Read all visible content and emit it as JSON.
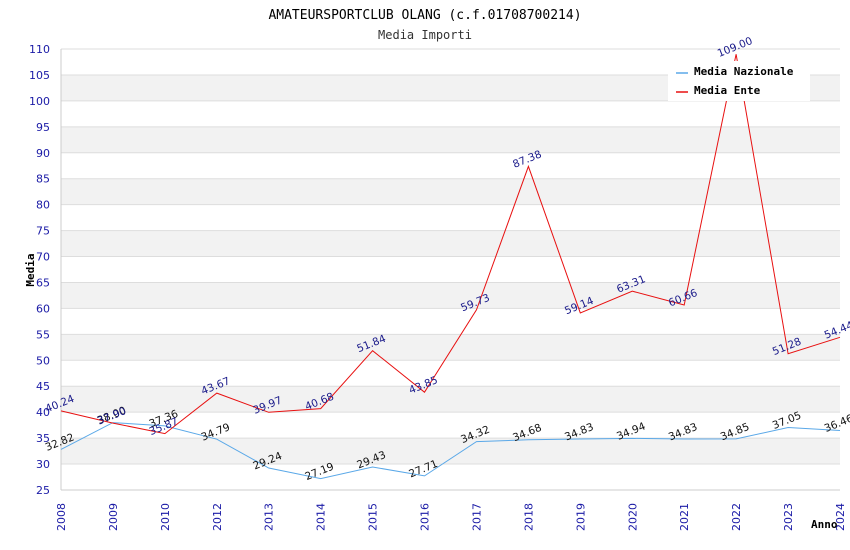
{
  "chart_data": {
    "type": "line",
    "title": "AMATEURSPORTCLUB OLANG (c.f.01708700214)",
    "subtitle": "Media Importi",
    "xlabel": "Anno",
    "ylabel": "Media",
    "ylim": [
      25,
      110
    ],
    "ytick_step": 5,
    "categories": [
      "2008",
      "2009",
      "2010",
      "2012",
      "2013",
      "2014",
      "2015",
      "2016",
      "2017",
      "2018",
      "2019",
      "2020",
      "2021",
      "2022",
      "2023",
      "2024"
    ],
    "series": [
      {
        "name": "Media Nazionale",
        "color": "#5aa8e8",
        "values": [
          32.82,
          38.0,
          37.36,
          34.79,
          29.24,
          27.19,
          29.43,
          27.71,
          34.32,
          34.68,
          34.83,
          34.94,
          34.83,
          34.85,
          37.05,
          36.46
        ],
        "labels": [
          "32.82",
          "38.00",
          "37.36",
          "34.79",
          "29.24",
          "27.19",
          "29.43",
          "27.71",
          "34.32",
          "34.68",
          "34.83",
          "34.94",
          "34.83",
          "34.85",
          "37.05",
          "36.46"
        ]
      },
      {
        "name": "Media Ente",
        "color": "#e81010",
        "values": [
          40.24,
          37.9,
          35.87,
          43.67,
          39.97,
          40.68,
          51.84,
          43.85,
          59.73,
          87.38,
          59.14,
          63.31,
          60.66,
          109.0,
          51.28,
          54.44
        ],
        "labels": [
          "40.24",
          "37.90",
          "35.87",
          "43.67",
          "39.97",
          "40.68",
          "51.84",
          "43.85",
          "59.73",
          "87.38",
          "59.14",
          "63.31",
          "60.66",
          "109.00",
          "51.28",
          "54.44"
        ]
      }
    ],
    "legend": "top-right",
    "grid": "horizontal-bands"
  }
}
